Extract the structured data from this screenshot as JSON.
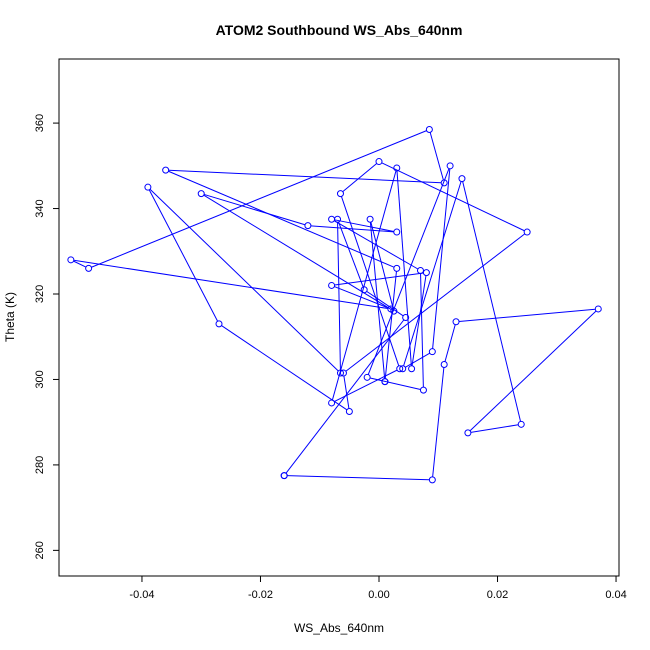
{
  "chart_data": {
    "type": "line",
    "title": "ATOM2 Southbound WS_Abs_640nm",
    "xlabel": "WS_Abs_640nm",
    "ylabel": "Theta (K)",
    "xlim": [
      -0.054,
      0.0405
    ],
    "ylim": [
      254,
      375
    ],
    "x_ticks": [
      -0.04,
      -0.02,
      0.0,
      0.02,
      0.04
    ],
    "x_tick_labels": [
      "-0.04",
      "-0.02",
      "0.00",
      "0.02",
      "0.04"
    ],
    "y_ticks": [
      260,
      280,
      300,
      320,
      340,
      360
    ],
    "y_tick_labels": [
      "260",
      "280",
      "300",
      "320",
      "340",
      "360"
    ],
    "grid": false,
    "legend": "none",
    "series_color": "#0000ff",
    "series": [
      {
        "x": [
          -0.016,
          0.009,
          0.011,
          0.013,
          0.037,
          0.015,
          0.024,
          0.014,
          0.004,
          0.009,
          0.012,
          -0.002,
          0.0075,
          0.007,
          -0.008,
          0.003,
          -0.012,
          -0.03,
          0.0025,
          -0.0015,
          0.001,
          0.001,
          0.003,
          -0.036,
          0.011,
          0.0085,
          -0.049,
          -0.052,
          0.002,
          -0.008,
          0.008,
          0.0055,
          0.003,
          -0.008,
          0.0035,
          -0.0065,
          0.0,
          0.025,
          -0.006,
          -0.005,
          -0.027,
          -0.039,
          -0.0065,
          -0.007,
          -0.0025,
          0.0045,
          -0.016
        ],
        "y": [
          277.5,
          276.5,
          303.5,
          313.5,
          316.5,
          287.5,
          289.5,
          347.0,
          302.5,
          306.5,
          350.0,
          300.5,
          297.5,
          325.5,
          337.5,
          334.5,
          336.0,
          343.5,
          316.0,
          337.5,
          299.5,
          299.5,
          326.0,
          349.0,
          346.0,
          358.5,
          326.0,
          328.0,
          316.5,
          322.0,
          325.0,
          302.5,
          349.5,
          294.5,
          302.5,
          343.5,
          351.0,
          334.5,
          301.5,
          292.5,
          313.0,
          345.0,
          301.5,
          337.5,
          321.0,
          314.5,
          277.5
        ]
      }
    ]
  }
}
